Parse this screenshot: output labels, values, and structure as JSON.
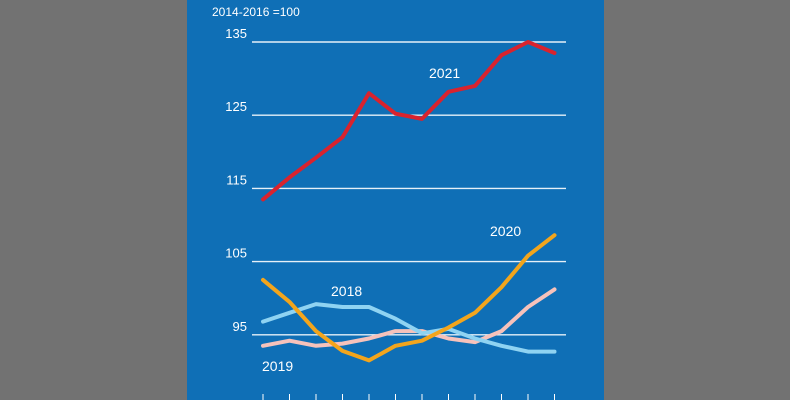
{
  "chart_data": {
    "type": "line",
    "note": "2014-2016 =100",
    "title": "",
    "xlabel": "",
    "ylabel": "",
    "ylim": [
      92,
      136
    ],
    "yticks": [
      95,
      105,
      115,
      125,
      135
    ],
    "x": [
      1,
      2,
      3,
      4,
      5,
      6,
      7,
      8,
      9,
      10,
      11,
      12
    ],
    "grid": true,
    "series": [
      {
        "name": "2021",
        "color": "#d9232e",
        "values": [
          113.5,
          116.5,
          119.2,
          122,
          128,
          125.2,
          124.5,
          128.2,
          129,
          133.2,
          135,
          133.5
        ]
      },
      {
        "name": "2020",
        "color": "#f3a51c",
        "values": [
          102.5,
          99.5,
          95.5,
          92.8,
          91.5,
          93.5,
          94.2,
          96,
          98,
          101.5,
          105.8,
          108.6
        ]
      },
      {
        "name": "2018",
        "color": "#8fd3f2",
        "values": [
          96.8,
          98,
          99.2,
          98.8,
          98.8,
          97.2,
          95.2,
          95.8,
          94.5,
          93.5,
          92.7,
          92.7
        ]
      },
      {
        "name": "2019",
        "color": "#f6c2bb",
        "values": [
          93.5,
          94.2,
          93.5,
          93.8,
          94.5,
          95.5,
          95.5,
          94.5,
          94,
          95.5,
          98.8,
          101.2
        ]
      }
    ]
  }
}
